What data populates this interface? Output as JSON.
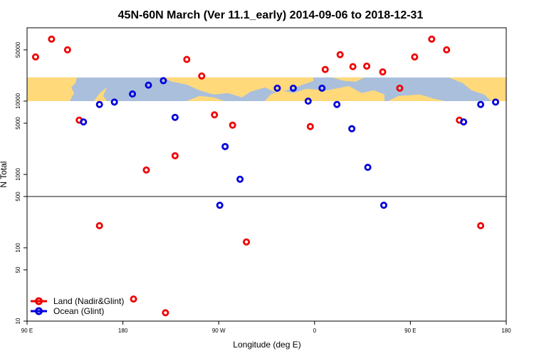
{
  "colors": {
    "land": "#ee0000",
    "ocean": "#0000dd",
    "map_band": "#aabfdc",
    "map_land": "#ffd97a",
    "reference_line": "#444444"
  },
  "chart_data": {
    "type": "scatter",
    "title": "45N-60N March (Ver 11.1_early)   2014-09-06 to 2018-12-31",
    "xlabel": "Longitude (deg E)",
    "ylabel": "N Total",
    "xlim": [
      90,
      540
    ],
    "ylim": [
      10,
      100000
    ],
    "ylog": true,
    "grid": false,
    "legend_position": "bottom-left",
    "reference_line_y": 500,
    "map_band_y": [
      10000,
      21000
    ],
    "x_ticks": [
      {
        "value": 90,
        "label": "90 E"
      },
      {
        "value": 180,
        "label": "180"
      },
      {
        "value": 270,
        "label": "90 W"
      },
      {
        "value": 360,
        "label": "0"
      },
      {
        "value": 450,
        "label": "90 E"
      },
      {
        "value": 540,
        "label": "180"
      }
    ],
    "y_ticks": [
      {
        "value": 10,
        "label": "10"
      },
      {
        "value": 50,
        "label": "50"
      },
      {
        "value": 100,
        "label": "100"
      },
      {
        "value": 500,
        "label": "500"
      },
      {
        "value": 1000,
        "label": "1000"
      },
      {
        "value": 5000,
        "label": "5000"
      },
      {
        "value": 10000,
        "label": "10000"
      },
      {
        "value": 50000,
        "label": "50000"
      }
    ],
    "series": [
      {
        "name": "Land (Nadir&Glint)",
        "marker": "circle-open",
        "color": "#ee0000",
        "points": [
          [
            98,
            40000
          ],
          [
            113,
            70000
          ],
          [
            128,
            50000
          ],
          [
            139,
            5500
          ],
          [
            158,
            200
          ],
          [
            190,
            20
          ],
          [
            202,
            1150
          ],
          [
            220,
            13
          ],
          [
            229,
            1800
          ],
          [
            240,
            37000
          ],
          [
            254,
            22000
          ],
          [
            266,
            6500
          ],
          [
            283,
            4700
          ],
          [
            296,
            120
          ],
          [
            356,
            4500
          ],
          [
            370,
            27000
          ],
          [
            384,
            43000
          ],
          [
            396,
            29500
          ],
          [
            409,
            30000
          ],
          [
            424,
            25000
          ],
          [
            440,
            15000
          ],
          [
            454,
            40000
          ],
          [
            470,
            70000
          ],
          [
            484,
            50000
          ],
          [
            496,
            5500
          ],
          [
            516,
            200
          ]
        ]
      },
      {
        "name": "Ocean (Glint)",
        "marker": "circle-open",
        "color": "#0000dd",
        "points": [
          [
            143,
            5200
          ],
          [
            158,
            9000
          ],
          [
            172,
            9700
          ],
          [
            189,
            12500
          ],
          [
            204,
            16500
          ],
          [
            218,
            19000
          ],
          [
            229,
            6000
          ],
          [
            271,
            380
          ],
          [
            276,
            2400
          ],
          [
            290,
            860
          ],
          [
            325,
            15000
          ],
          [
            340,
            15000
          ],
          [
            354,
            10000
          ],
          [
            367,
            15000
          ],
          [
            381,
            9000
          ],
          [
            395,
            4200
          ],
          [
            410,
            1250
          ],
          [
            425,
            380
          ],
          [
            500,
            5200
          ],
          [
            516,
            9000
          ],
          [
            530,
            9700
          ]
        ]
      }
    ]
  }
}
